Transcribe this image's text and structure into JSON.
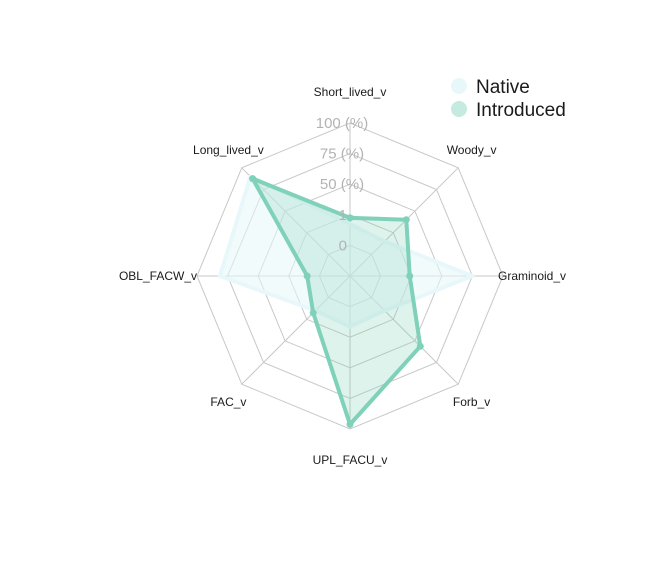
{
  "chart_data": {
    "type": "radar",
    "axes": [
      "Short_lived_v",
      "Woody_v",
      "Graminoid_v",
      "Forb_v",
      "UPL_FACU_v",
      "FAC_v",
      "OBL_FACW_v",
      "Long_lived_v"
    ],
    "grid_labels": [
      "0",
      "1",
      "50 (%)",
      "75 (%)",
      "100 (%)"
    ],
    "series": [
      {
        "name": "Native",
        "values": [
          0.34,
          0.32,
          0.8,
          0.32,
          0.33,
          0.32,
          0.85,
          0.92
        ],
        "color": "#e8f7fa",
        "fill_opacity": 0.55,
        "marker": false
      },
      {
        "name": "Introduced",
        "values": [
          0.38,
          0.52,
          0.39,
          0.65,
          0.97,
          0.34,
          0.28,
          0.9
        ],
        "color": "#7fd1b9",
        "fill_opacity": 0.25,
        "marker": true
      }
    ],
    "legend_position": "top-right"
  },
  "colors": {
    "grid": "#c8c8c8",
    "text": "#1a1a1a",
    "grid_text": "#b3b3b3"
  }
}
